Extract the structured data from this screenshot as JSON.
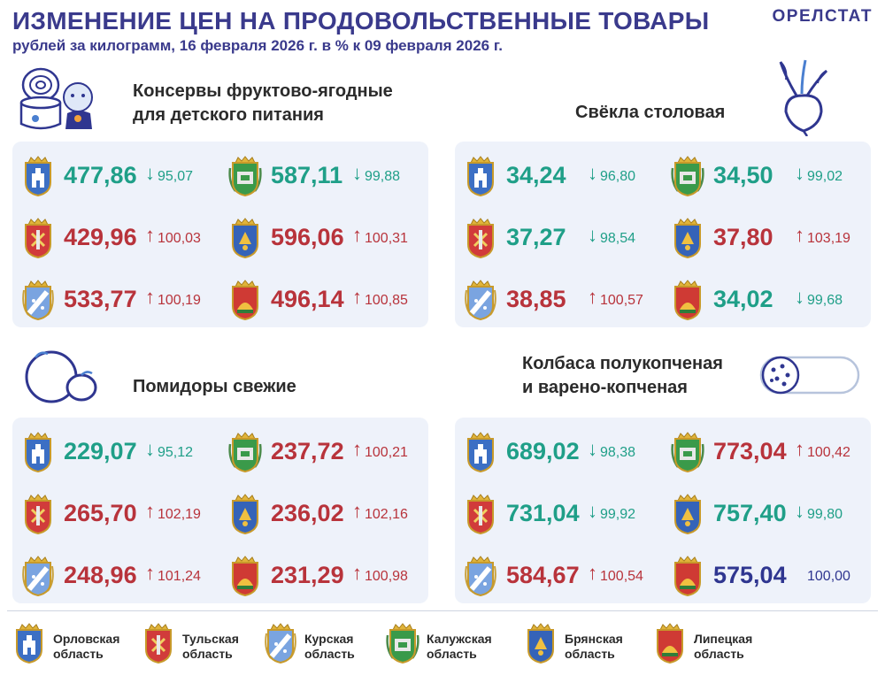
{
  "header": {
    "title": "ИЗМЕНЕНИЕ ЦЕН НА ПРОДОВОЛЬСТВЕННЫЕ ТОВАРЫ",
    "subtitle": "рублей за килограмм, 16 февраля 2026 г. в % к 09 февраля 2026 г.",
    "brand": "ОРЕЛСТАТ"
  },
  "arrows": {
    "down": "↓",
    "up": "↑"
  },
  "categories": [
    {
      "name_line1": "Консервы фруктово-ягодные",
      "name_line2": "для детского питания",
      "icon": "baby-food-jar-icon",
      "cells": [
        {
          "region": "orel",
          "price": "477,86",
          "index": "95,07",
          "dir": "down"
        },
        {
          "region": "kaluga",
          "price": "587,11",
          "index": "99,88",
          "dir": "down"
        },
        {
          "region": "tula",
          "price": "429,96",
          "index": "100,03",
          "dir": "up"
        },
        {
          "region": "bryansk",
          "price": "596,06",
          "index": "100,31",
          "dir": "up"
        },
        {
          "region": "kursk",
          "price": "533,77",
          "index": "100,19",
          "dir": "up"
        },
        {
          "region": "lipetsk",
          "price": "496,14",
          "index": "100,85",
          "dir": "up"
        }
      ]
    },
    {
      "name_line1": "Свёкла столовая",
      "name_line2": "",
      "icon": "beetroot-icon",
      "cells": [
        {
          "region": "orel",
          "price": "34,24",
          "index": "96,80",
          "dir": "down"
        },
        {
          "region": "kaluga",
          "price": "34,50",
          "index": "99,02",
          "dir": "down"
        },
        {
          "region": "tula",
          "price": "37,27",
          "index": "98,54",
          "dir": "down"
        },
        {
          "region": "bryansk",
          "price": "37,80",
          "index": "103,19",
          "dir": "up"
        },
        {
          "region": "kursk",
          "price": "38,85",
          "index": "100,57",
          "dir": "up"
        },
        {
          "region": "lipetsk",
          "price": "34,02",
          "index": "99,68",
          "dir": "down"
        }
      ]
    },
    {
      "name_line1": "Помидоры свежие",
      "name_line2": "",
      "icon": "tomato-icon",
      "cells": [
        {
          "region": "orel",
          "price": "229,07",
          "index": "95,12",
          "dir": "down"
        },
        {
          "region": "kaluga",
          "price": "237,72",
          "index": "100,21",
          "dir": "up"
        },
        {
          "region": "tula",
          "price": "265,70",
          "index": "102,19",
          "dir": "up"
        },
        {
          "region": "bryansk",
          "price": "236,02",
          "index": "102,16",
          "dir": "up"
        },
        {
          "region": "kursk",
          "price": "248,96",
          "index": "101,24",
          "dir": "up"
        },
        {
          "region": "lipetsk",
          "price": "231,29",
          "index": "100,98",
          "dir": "up"
        }
      ]
    },
    {
      "name_line1": "Колбаса полукопченая",
      "name_line2": "и варено-копченая",
      "icon": "sausage-icon",
      "cells": [
        {
          "region": "orel",
          "price": "689,02",
          "index": "98,38",
          "dir": "down"
        },
        {
          "region": "kaluga",
          "price": "773,04",
          "index": "100,42",
          "dir": "up"
        },
        {
          "region": "tula",
          "price": "731,04",
          "index": "99,92",
          "dir": "down"
        },
        {
          "region": "bryansk",
          "price": "757,40",
          "index": "99,80",
          "dir": "down"
        },
        {
          "region": "kursk",
          "price": "584,67",
          "index": "100,54",
          "dir": "up"
        },
        {
          "region": "lipetsk",
          "price": "575,04",
          "index": "100,00",
          "dir": "same"
        }
      ]
    }
  ],
  "legend": [
    {
      "region": "orel",
      "line1": "Орловская",
      "line2": "область"
    },
    {
      "region": "tula",
      "line1": "Тульская",
      "line2": "область"
    },
    {
      "region": "kursk",
      "line1": "Курская",
      "line2": "область"
    },
    {
      "region": "kaluga",
      "line1": "Калужская",
      "line2": "область"
    },
    {
      "region": "bryansk",
      "line1": "Брянская",
      "line2": "область"
    },
    {
      "region": "lipetsk",
      "line1": "Липецкая",
      "line2": "область"
    }
  ],
  "colors": {
    "down": "#1f9f88",
    "up": "#b8333b",
    "same": "#2f3690",
    "title": "#3a3a8c",
    "panel": "#eef2fa"
  }
}
